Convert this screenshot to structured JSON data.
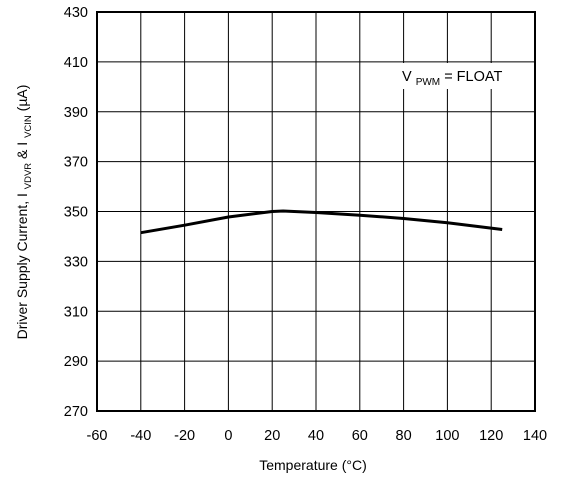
{
  "chart_data": {
    "type": "line",
    "title": "",
    "xlabel": "Temperature (°C)",
    "ylabel": {
      "prefix": "Driver Supply Current, I",
      "sub1": "VDVR",
      "middle": " & I",
      "sub2": "VCIN",
      "suffix": " (µA)"
    },
    "xlim": [
      -60,
      140
    ],
    "ylim": [
      270,
      430
    ],
    "xticks": [
      -60,
      -40,
      -20,
      0,
      20,
      40,
      60,
      80,
      100,
      120,
      140
    ],
    "yticks": [
      270,
      290,
      310,
      330,
      350,
      370,
      390,
      410,
      430
    ],
    "grid": true,
    "annotation": {
      "main": "V",
      "sub": "PWM",
      "rest": " = FLOAT"
    },
    "series": [
      {
        "x": [
          -40,
          -20,
          0,
          20,
          25,
          40,
          60,
          80,
          100,
          125
        ],
        "y": [
          341.5,
          344.5,
          347.8,
          350.0,
          350.2,
          349.6,
          348.5,
          347.2,
          345.5,
          342.8
        ]
      }
    ]
  }
}
